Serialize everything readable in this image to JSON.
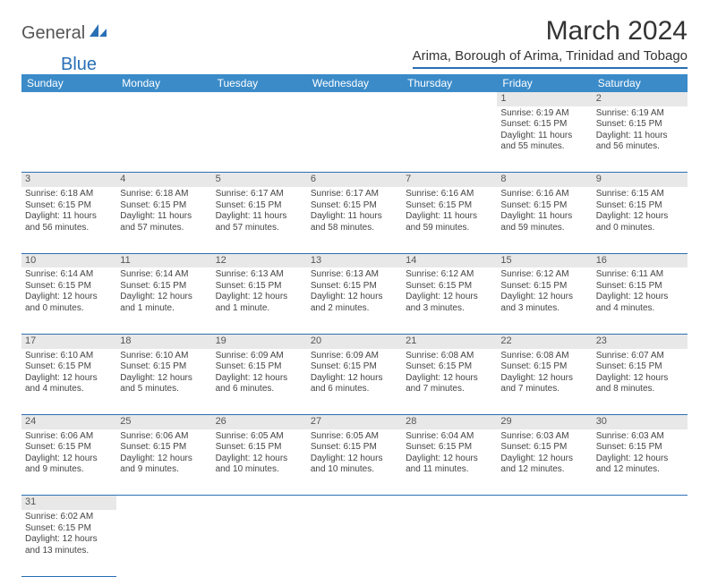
{
  "logo": {
    "text1": "General",
    "text2": "Blue"
  },
  "title": "March 2024",
  "subtitle": "Arima, Borough of Arima, Trinidad and Tobago",
  "colors": {
    "header_bg": "#3b8bc9",
    "rule": "#2a6fb5",
    "daynum_bg": "#e8e8e8",
    "text": "#444444"
  },
  "day_headers": [
    "Sunday",
    "Monday",
    "Tuesday",
    "Wednesday",
    "Thursday",
    "Friday",
    "Saturday"
  ],
  "weeks": [
    {
      "nums": [
        "",
        "",
        "",
        "",
        "",
        "1",
        "2"
      ],
      "cells": [
        null,
        null,
        null,
        null,
        null,
        {
          "sunrise": "6:19 AM",
          "sunset": "6:15 PM",
          "daylight": "11 hours and 55 minutes."
        },
        {
          "sunrise": "6:19 AM",
          "sunset": "6:15 PM",
          "daylight": "11 hours and 56 minutes."
        }
      ]
    },
    {
      "nums": [
        "3",
        "4",
        "5",
        "6",
        "7",
        "8",
        "9"
      ],
      "cells": [
        {
          "sunrise": "6:18 AM",
          "sunset": "6:15 PM",
          "daylight": "11 hours and 56 minutes."
        },
        {
          "sunrise": "6:18 AM",
          "sunset": "6:15 PM",
          "daylight": "11 hours and 57 minutes."
        },
        {
          "sunrise": "6:17 AM",
          "sunset": "6:15 PM",
          "daylight": "11 hours and 57 minutes."
        },
        {
          "sunrise": "6:17 AM",
          "sunset": "6:15 PM",
          "daylight": "11 hours and 58 minutes."
        },
        {
          "sunrise": "6:16 AM",
          "sunset": "6:15 PM",
          "daylight": "11 hours and 59 minutes."
        },
        {
          "sunrise": "6:16 AM",
          "sunset": "6:15 PM",
          "daylight": "11 hours and 59 minutes."
        },
        {
          "sunrise": "6:15 AM",
          "sunset": "6:15 PM",
          "daylight": "12 hours and 0 minutes."
        }
      ]
    },
    {
      "nums": [
        "10",
        "11",
        "12",
        "13",
        "14",
        "15",
        "16"
      ],
      "cells": [
        {
          "sunrise": "6:14 AM",
          "sunset": "6:15 PM",
          "daylight": "12 hours and 0 minutes."
        },
        {
          "sunrise": "6:14 AM",
          "sunset": "6:15 PM",
          "daylight": "12 hours and 1 minute."
        },
        {
          "sunrise": "6:13 AM",
          "sunset": "6:15 PM",
          "daylight": "12 hours and 1 minute."
        },
        {
          "sunrise": "6:13 AM",
          "sunset": "6:15 PM",
          "daylight": "12 hours and 2 minutes."
        },
        {
          "sunrise": "6:12 AM",
          "sunset": "6:15 PM",
          "daylight": "12 hours and 3 minutes."
        },
        {
          "sunrise": "6:12 AM",
          "sunset": "6:15 PM",
          "daylight": "12 hours and 3 minutes."
        },
        {
          "sunrise": "6:11 AM",
          "sunset": "6:15 PM",
          "daylight": "12 hours and 4 minutes."
        }
      ]
    },
    {
      "nums": [
        "17",
        "18",
        "19",
        "20",
        "21",
        "22",
        "23"
      ],
      "cells": [
        {
          "sunrise": "6:10 AM",
          "sunset": "6:15 PM",
          "daylight": "12 hours and 4 minutes."
        },
        {
          "sunrise": "6:10 AM",
          "sunset": "6:15 PM",
          "daylight": "12 hours and 5 minutes."
        },
        {
          "sunrise": "6:09 AM",
          "sunset": "6:15 PM",
          "daylight": "12 hours and 6 minutes."
        },
        {
          "sunrise": "6:09 AM",
          "sunset": "6:15 PM",
          "daylight": "12 hours and 6 minutes."
        },
        {
          "sunrise": "6:08 AM",
          "sunset": "6:15 PM",
          "daylight": "12 hours and 7 minutes."
        },
        {
          "sunrise": "6:08 AM",
          "sunset": "6:15 PM",
          "daylight": "12 hours and 7 minutes."
        },
        {
          "sunrise": "6:07 AM",
          "sunset": "6:15 PM",
          "daylight": "12 hours and 8 minutes."
        }
      ]
    },
    {
      "nums": [
        "24",
        "25",
        "26",
        "27",
        "28",
        "29",
        "30"
      ],
      "cells": [
        {
          "sunrise": "6:06 AM",
          "sunset": "6:15 PM",
          "daylight": "12 hours and 9 minutes."
        },
        {
          "sunrise": "6:06 AM",
          "sunset": "6:15 PM",
          "daylight": "12 hours and 9 minutes."
        },
        {
          "sunrise": "6:05 AM",
          "sunset": "6:15 PM",
          "daylight": "12 hours and 10 minutes."
        },
        {
          "sunrise": "6:05 AM",
          "sunset": "6:15 PM",
          "daylight": "12 hours and 10 minutes."
        },
        {
          "sunrise": "6:04 AM",
          "sunset": "6:15 PM",
          "daylight": "12 hours and 11 minutes."
        },
        {
          "sunrise": "6:03 AM",
          "sunset": "6:15 PM",
          "daylight": "12 hours and 12 minutes."
        },
        {
          "sunrise": "6:03 AM",
          "sunset": "6:15 PM",
          "daylight": "12 hours and 12 minutes."
        }
      ]
    },
    {
      "nums": [
        "31",
        "",
        "",
        "",
        "",
        "",
        ""
      ],
      "cells": [
        {
          "sunrise": "6:02 AM",
          "sunset": "6:15 PM",
          "daylight": "12 hours and 13 minutes."
        },
        null,
        null,
        null,
        null,
        null,
        null
      ]
    }
  ],
  "labels": {
    "sunrise": "Sunrise:",
    "sunset": "Sunset:",
    "daylight": "Daylight:"
  }
}
